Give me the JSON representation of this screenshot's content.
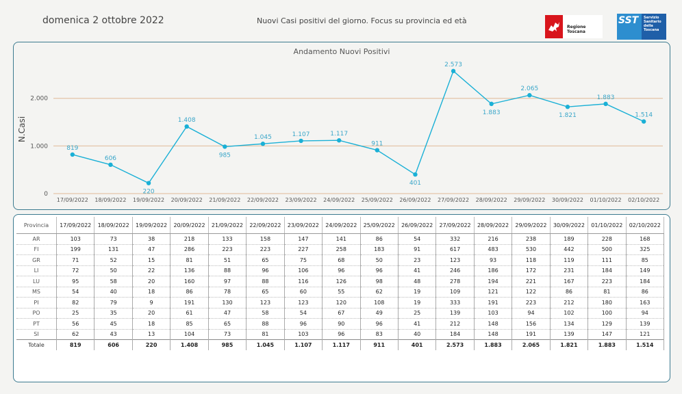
{
  "header": {
    "date": "domenica 2 ottobre 2022",
    "title": "Nuovi Casi positivi del giorno. Focus su provincia ed età",
    "logo_regione": "Regione Toscana",
    "logo_sst": "SST",
    "logo_sst_text": "Servizio\nSanitario\ndella\nToscana"
  },
  "chart_data": {
    "type": "line",
    "title": "Andamento Nuovi Positivi",
    "ylabel": "N.Casi",
    "xlabel": "",
    "ylim": [
      0,
      2700
    ],
    "yticks": [
      0,
      1000,
      2000
    ],
    "ytick_labels": [
      "0",
      "1.000",
      "2.000"
    ],
    "grid": "horizontal",
    "line_color": "#1ab0d6",
    "grid_color": "#e3c4a8",
    "categories": [
      "17/09/2022",
      "18/09/2022",
      "19/09/2022",
      "20/09/2022",
      "21/09/2022",
      "22/09/2022",
      "23/09/2022",
      "24/09/2022",
      "25/09/2022",
      "26/09/2022",
      "27/09/2022",
      "28/09/2022",
      "29/09/2022",
      "30/09/2022",
      "01/10/2022",
      "02/10/2022"
    ],
    "values": [
      819,
      606,
      220,
      1408,
      985,
      1045,
      1107,
      1117,
      911,
      401,
      2573,
      1883,
      2065,
      1821,
      1883,
      1514
    ],
    "value_labels": [
      "819",
      "606",
      "220",
      "1.408",
      "985",
      "1.045",
      "1.107",
      "1.117",
      "911",
      "401",
      "2.573",
      "1.883",
      "2.065",
      "1.821",
      "1.883",
      "1.514"
    ]
  },
  "table": {
    "header_label": "Provincia",
    "dates": [
      "17/09/2022",
      "18/09/2022",
      "19/09/2022",
      "20/09/2022",
      "21/09/2022",
      "22/09/2022",
      "23/09/2022",
      "24/09/2022",
      "25/09/2022",
      "26/09/2022",
      "27/09/2022",
      "28/09/2022",
      "29/09/2022",
      "30/09/2022",
      "01/10/2022",
      "02/10/2022"
    ],
    "rows": [
      {
        "provincia": "AR",
        "values": [
          "103",
          "73",
          "38",
          "218",
          "133",
          "158",
          "147",
          "141",
          "86",
          "54",
          "332",
          "216",
          "238",
          "189",
          "228",
          "168"
        ]
      },
      {
        "provincia": "FI",
        "values": [
          "199",
          "131",
          "47",
          "286",
          "223",
          "223",
          "227",
          "258",
          "183",
          "91",
          "617",
          "483",
          "530",
          "442",
          "500",
          "325"
        ]
      },
      {
        "provincia": "GR",
        "values": [
          "71",
          "52",
          "15",
          "81",
          "51",
          "65",
          "75",
          "68",
          "50",
          "23",
          "123",
          "93",
          "118",
          "119",
          "111",
          "85"
        ]
      },
      {
        "provincia": "LI",
        "values": [
          "72",
          "50",
          "22",
          "136",
          "88",
          "96",
          "106",
          "96",
          "96",
          "41",
          "246",
          "186",
          "172",
          "231",
          "184",
          "149"
        ]
      },
      {
        "provincia": "LU",
        "values": [
          "95",
          "58",
          "20",
          "160",
          "97",
          "88",
          "116",
          "126",
          "98",
          "48",
          "278",
          "194",
          "221",
          "167",
          "223",
          "184"
        ]
      },
      {
        "provincia": "MS",
        "values": [
          "54",
          "40",
          "18",
          "86",
          "78",
          "65",
          "60",
          "55",
          "62",
          "19",
          "109",
          "121",
          "122",
          "86",
          "81",
          "86"
        ]
      },
      {
        "provincia": "PI",
        "values": [
          "82",
          "79",
          "9",
          "191",
          "130",
          "123",
          "123",
          "120",
          "108",
          "19",
          "333",
          "191",
          "223",
          "212",
          "180",
          "163"
        ]
      },
      {
        "provincia": "PO",
        "values": [
          "25",
          "35",
          "20",
          "61",
          "47",
          "58",
          "54",
          "67",
          "49",
          "25",
          "139",
          "103",
          "94",
          "102",
          "100",
          "94"
        ]
      },
      {
        "provincia": "PT",
        "values": [
          "56",
          "45",
          "18",
          "85",
          "65",
          "88",
          "96",
          "90",
          "96",
          "41",
          "212",
          "148",
          "156",
          "134",
          "129",
          "139"
        ]
      },
      {
        "provincia": "SI",
        "values": [
          "62",
          "43",
          "13",
          "104",
          "73",
          "81",
          "103",
          "96",
          "83",
          "40",
          "184",
          "148",
          "191",
          "139",
          "147",
          "121"
        ]
      }
    ],
    "total": {
      "provincia": "Totale",
      "values": [
        "819",
        "606",
        "220",
        "1.408",
        "985",
        "1.045",
        "1.107",
        "1.117",
        "911",
        "401",
        "2.573",
        "1.883",
        "2.065",
        "1.821",
        "1.883",
        "1.514"
      ]
    }
  }
}
